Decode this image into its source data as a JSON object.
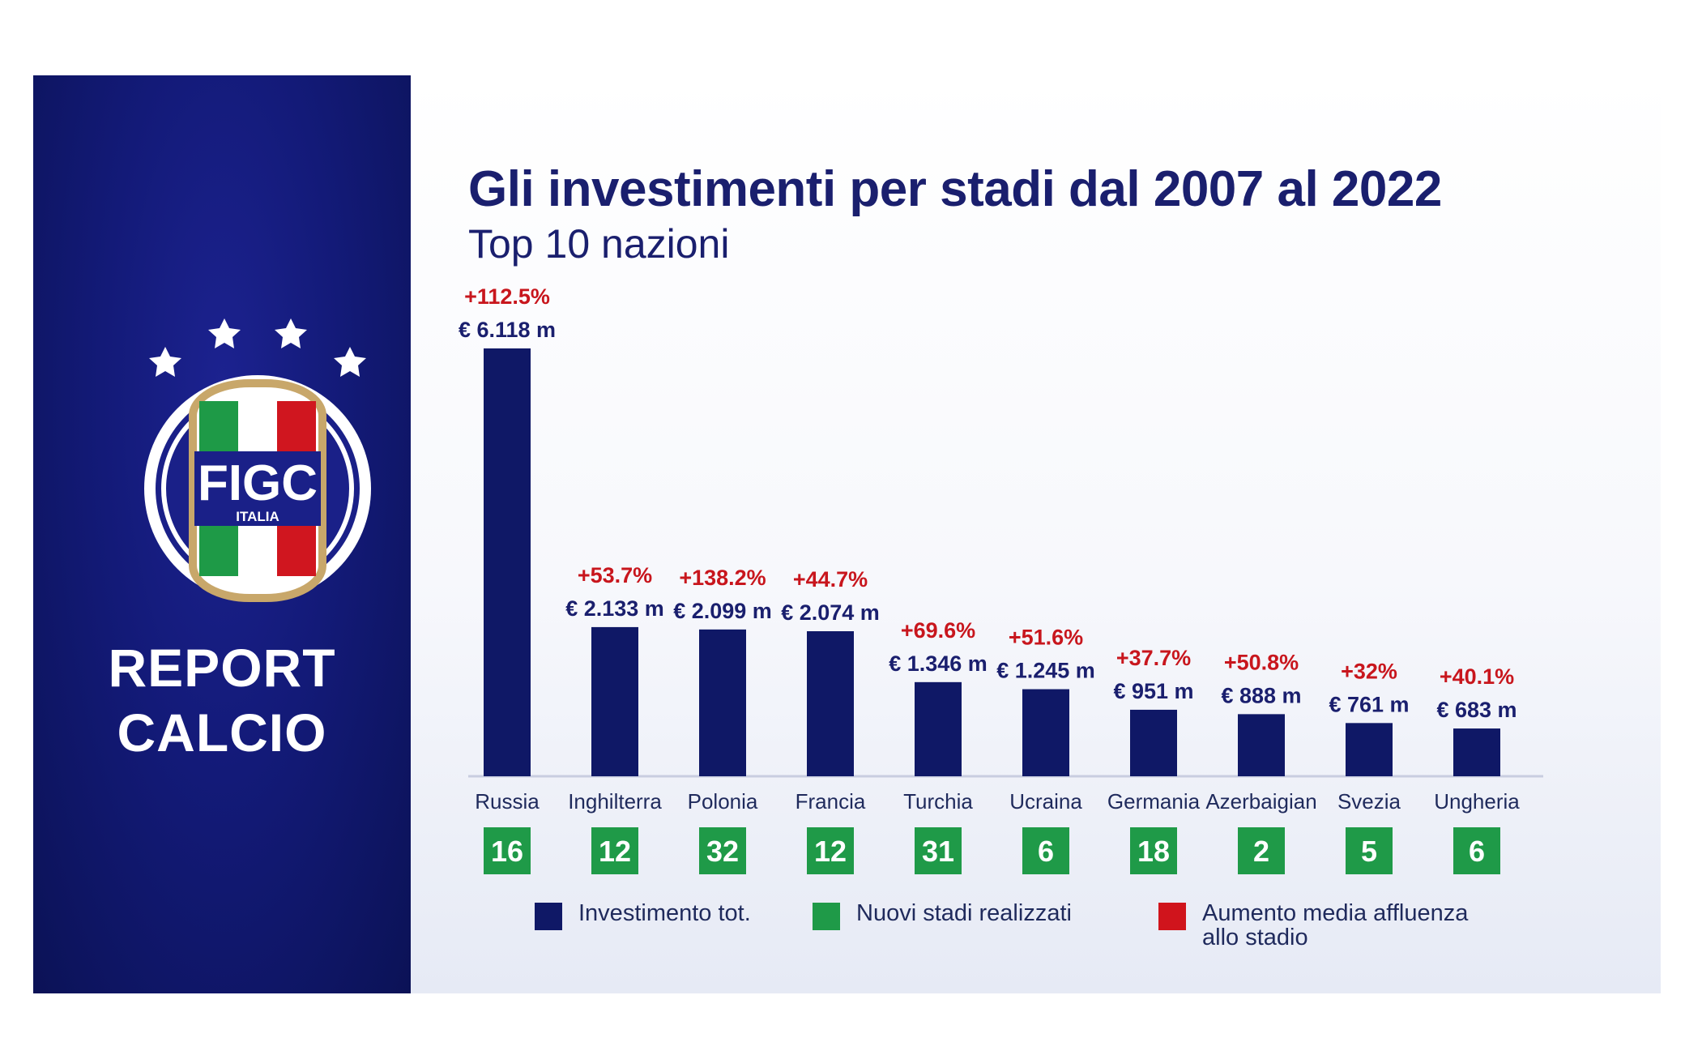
{
  "panel": {
    "brand": "FIGC",
    "brand_sub": "ITALIA",
    "report_line1": "REPORT",
    "report_line2": "CALCIO"
  },
  "colors": {
    "investment": "#0f1866",
    "stadiums": "#1f9a48",
    "attendance": "#d0141c",
    "panel": "#131a78"
  },
  "legend": [
    {
      "label": "Investimento tot.",
      "color": "#0f1866"
    },
    {
      "label": "Nuovi stadi realizzati",
      "color": "#1f9a48"
    },
    {
      "label": "Aumento media affluenza allo stadio",
      "color": "#d0141c"
    }
  ],
  "chart_data": {
    "type": "bar",
    "title": "Gli investimenti per stadi dal 2007 al 2022",
    "subtitle": "Top 10 nazioni",
    "categories": [
      "Russia",
      "Inghilterra",
      "Polonia",
      "Francia",
      "Turchia",
      "Ucraina",
      "Germania",
      "Azerbaigian",
      "Svezia",
      "Ungheria"
    ],
    "series": [
      {
        "name": "Investimento tot.",
        "values": [
          6118,
          2133,
          2099,
          2074,
          1346,
          1245,
          951,
          888,
          761,
          683
        ]
      },
      {
        "name": "Nuovi stadi realizzati",
        "values": [
          16,
          12,
          32,
          12,
          31,
          6,
          18,
          2,
          5,
          6
        ]
      },
      {
        "name": "Aumento media affluenza allo stadio",
        "values": [
          112.5,
          53.7,
          138.2,
          44.7,
          69.6,
          51.6,
          37.7,
          50.8,
          32,
          40.1
        ]
      }
    ],
    "value_labels": [
      "€ 6.118 m",
      "€ 2.133 m",
      "€ 2.099 m",
      "€ 2.074 m",
      "€ 1.346 m",
      "€ 1.245 m",
      "€ 951 m",
      "€ 888 m",
      "€ 761 m",
      "€ 683 m"
    ],
    "stadium_labels": [
      "16",
      "12",
      "32",
      "12",
      "31",
      "6",
      "18",
      "2",
      "5",
      "6"
    ],
    "attendance_labels": [
      "+112.5%",
      "+53.7%",
      "+138.2%",
      "+44.7%",
      "+69.6%",
      "+51.6%",
      "+37.7%",
      "+50.8%",
      "+32%",
      "+40.1%"
    ]
  }
}
